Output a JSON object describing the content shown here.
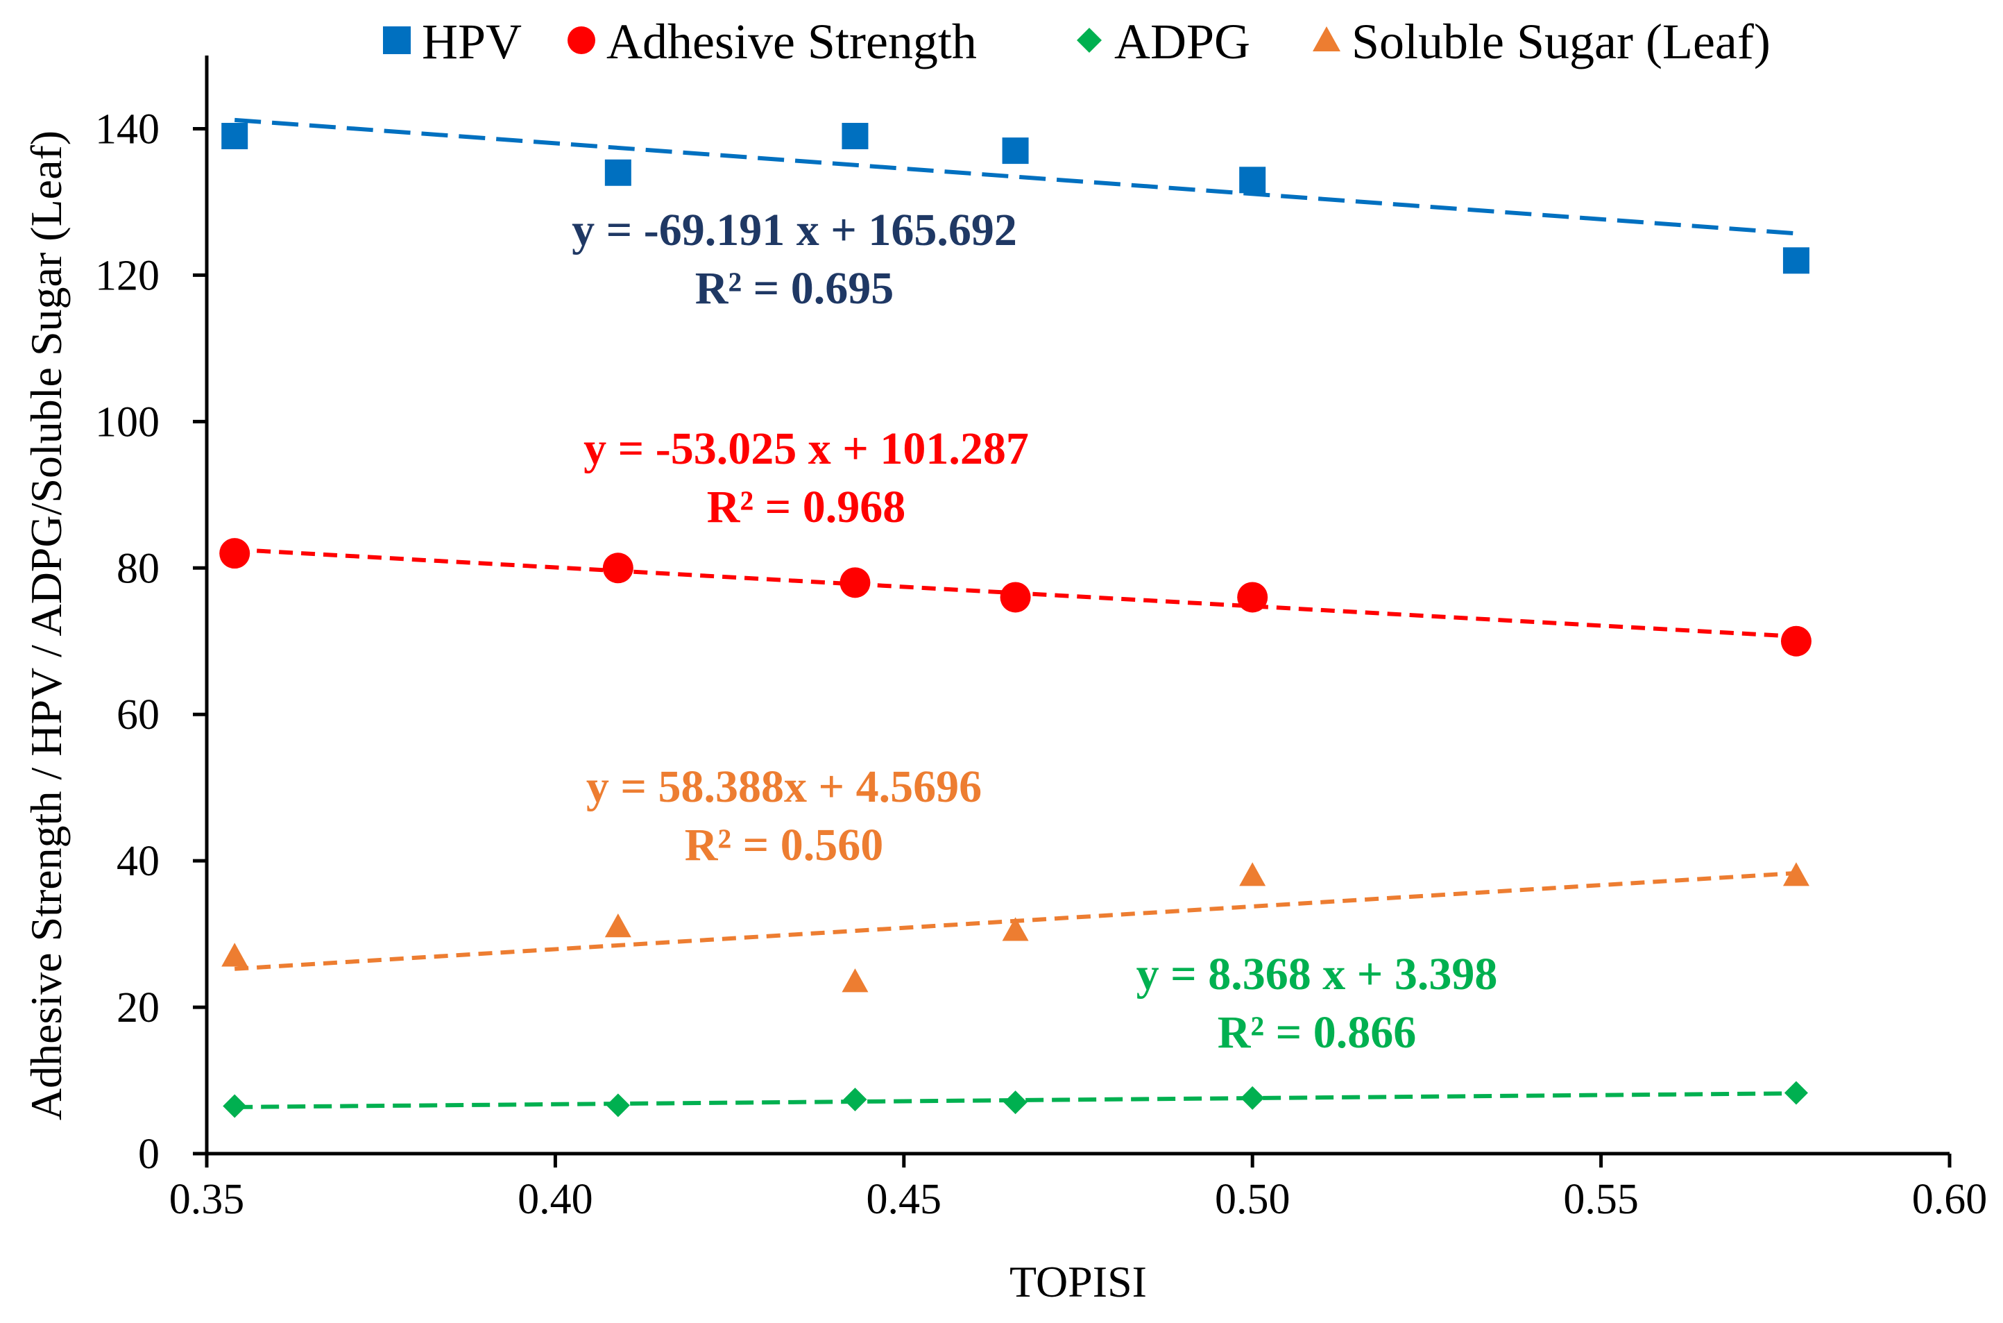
{
  "chart_data": {
    "type": "scatter",
    "title": "",
    "xlabel": "TOPISI",
    "ylabel": "Adhesive Strength / HPV / ADPG/Soluble Sugar (Leaf)",
    "xlim": [
      0.35,
      0.6
    ],
    "ylim": [
      0,
      150
    ],
    "xticks": [
      "0.35",
      "0.40",
      "0.45",
      "0.50",
      "0.55",
      "0.60"
    ],
    "yticks": [
      "0",
      "20",
      "40",
      "60",
      "80",
      "100",
      "120",
      "140"
    ],
    "grid": false,
    "legend_position": "top",
    "x": [
      0.354,
      0.409,
      0.443,
      0.466,
      0.5,
      0.578
    ],
    "series": [
      {
        "name": "HPV",
        "marker": "square",
        "color": "#0070C0",
        "values": [
          139,
          134,
          139,
          137,
          133,
          122
        ],
        "trendline": {
          "slope": -69.191,
          "intercept": 165.692,
          "equation": "y = -69.191 x + 165.692",
          "r2": "R² = 0.695",
          "label_color": "#1F3864"
        }
      },
      {
        "name": "Adhesive Strength",
        "marker": "circle",
        "color": "#FF0000",
        "values": [
          82,
          80,
          78,
          76,
          76,
          70
        ],
        "trendline": {
          "slope": -53.025,
          "intercept": 101.287,
          "equation": "y = -53.025 x + 101.287",
          "r2": "R² = 0.968",
          "label_color": "#FF0000"
        }
      },
      {
        "name": "ADPG",
        "marker": "diamond",
        "color": "#00B050",
        "values": [
          6.5,
          6.6,
          7.4,
          7.0,
          7.6,
          8.3
        ],
        "trendline": {
          "slope": 8.368,
          "intercept": 3.398,
          "equation": "y = 8.368 x + 3.398",
          "r2": "R² = 0.866",
          "label_color": "#00B050"
        }
      },
      {
        "name": "Soluble Sugar (Leaf)",
        "marker": "triangle",
        "color": "#ED7D31",
        "values": [
          27,
          31,
          23.5,
          30.5,
          38,
          38
        ],
        "trendline": {
          "slope": 58.388,
          "intercept": 4.5696,
          "equation": "y = 58.388x + 4.5696",
          "r2": "R² = 0.560",
          "label_color": "#ED7D31"
        }
      }
    ]
  }
}
